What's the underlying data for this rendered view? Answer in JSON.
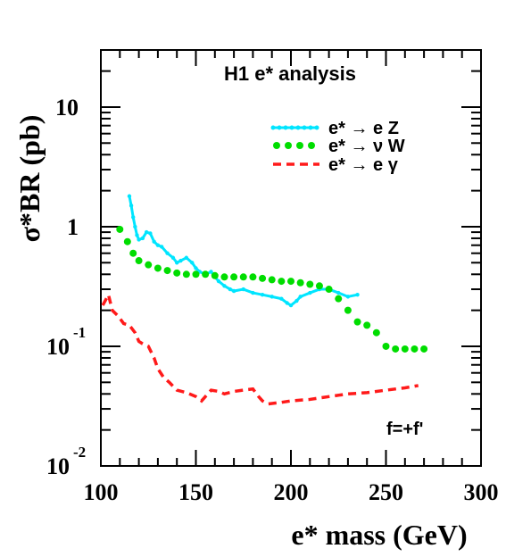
{
  "chart_data": {
    "type": "line",
    "title": "H1 e* analysis",
    "xlabel": "e* mass (GeV)",
    "ylabel": "σ*BR (pb)",
    "xlim": [
      100,
      300
    ],
    "ylim": [
      0.01,
      30
    ],
    "yscale": "log",
    "x_ticks": [
      "100",
      "150",
      "200",
      "250",
      "300"
    ],
    "y_ticks": [
      {
        "base": "10",
        "exp": "-2",
        "value": 0.01
      },
      {
        "base": "10",
        "exp": "-1",
        "value": 0.1
      },
      {
        "base": "1",
        "exp": "",
        "value": 1
      },
      {
        "base": "10",
        "exp": "",
        "value": 10
      }
    ],
    "annotation": "f=+f'",
    "legend_position": "top-right",
    "series": [
      {
        "name": "e* → e Z",
        "color": "#00e5ff",
        "style": "line-markers",
        "x": [
          115,
          116,
          117,
          118,
          119,
          120,
          122,
          124,
          126,
          128,
          130,
          132,
          135,
          138,
          140,
          142,
          145,
          148,
          150,
          152,
          155,
          158,
          160,
          162,
          165,
          168,
          170,
          175,
          180,
          185,
          190,
          195,
          198,
          200,
          203,
          205,
          210,
          215,
          220,
          225,
          230,
          235
        ],
        "y": [
          1.8,
          1.5,
          1.2,
          1.0,
          0.85,
          0.78,
          0.8,
          0.9,
          0.88,
          0.75,
          0.7,
          0.68,
          0.6,
          0.55,
          0.5,
          0.52,
          0.55,
          0.5,
          0.45,
          0.42,
          0.4,
          0.42,
          0.38,
          0.35,
          0.32,
          0.3,
          0.29,
          0.3,
          0.28,
          0.27,
          0.26,
          0.25,
          0.23,
          0.22,
          0.24,
          0.26,
          0.28,
          0.3,
          0.3,
          0.28,
          0.26,
          0.27
        ]
      },
      {
        "name": "e* → ν W",
        "color": "#00dd00",
        "style": "dots",
        "x": [
          110,
          114,
          117,
          120,
          125,
          130,
          135,
          140,
          145,
          150,
          155,
          160,
          165,
          170,
          175,
          180,
          185,
          190,
          195,
          200,
          205,
          210,
          215,
          220,
          225,
          230,
          235,
          240,
          245,
          250,
          255,
          260,
          265,
          270
        ],
        "y": [
          0.95,
          0.75,
          0.6,
          0.52,
          0.48,
          0.45,
          0.43,
          0.41,
          0.4,
          0.4,
          0.4,
          0.39,
          0.38,
          0.38,
          0.38,
          0.38,
          0.37,
          0.36,
          0.35,
          0.35,
          0.34,
          0.33,
          0.32,
          0.3,
          0.25,
          0.2,
          0.16,
          0.15,
          0.13,
          0.1,
          0.095,
          0.095,
          0.095,
          0.095
        ]
      },
      {
        "name": "e* → e γ",
        "color": "#ff1a1a",
        "style": "dashed",
        "x": [
          101,
          104,
          106,
          109,
          112,
          115,
          118,
          120,
          122,
          125,
          128,
          130,
          133,
          136,
          140,
          145,
          150,
          153,
          155,
          158,
          162,
          165,
          170,
          175,
          180,
          183,
          185,
          188,
          195,
          200,
          210,
          220,
          230,
          240,
          250,
          260,
          267
        ],
        "y": [
          0.22,
          0.27,
          0.2,
          0.18,
          0.155,
          0.15,
          0.13,
          0.11,
          0.105,
          0.1,
          0.08,
          0.065,
          0.055,
          0.05,
          0.043,
          0.041,
          0.038,
          0.035,
          0.038,
          0.043,
          0.042,
          0.04,
          0.042,
          0.043,
          0.044,
          0.038,
          0.035,
          0.033,
          0.034,
          0.035,
          0.036,
          0.038,
          0.04,
          0.041,
          0.043,
          0.045,
          0.047
        ]
      }
    ]
  }
}
